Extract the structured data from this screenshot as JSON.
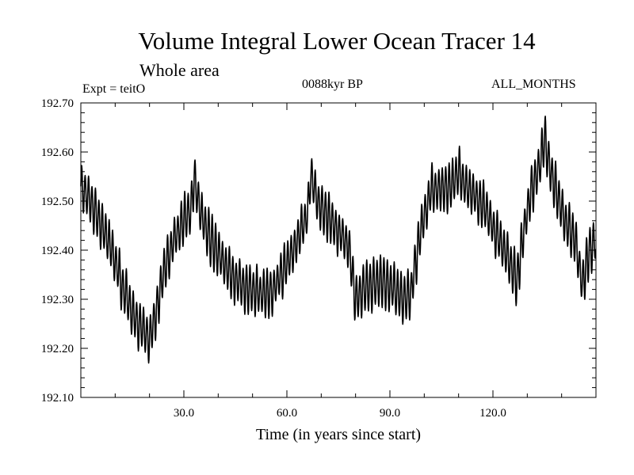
{
  "chart_data": {
    "type": "line",
    "title": "Volume Integral Lower Ocean Tracer 14",
    "subtitle": "Whole area",
    "experiment_label": "Expt = teitO",
    "period_label": "0088kyr BP",
    "months_label": "ALL_MONTHS",
    "xlabel": "Time (in years since start)",
    "ylabel": "",
    "xlim": [
      0,
      150
    ],
    "ylim": [
      192.1,
      192.7
    ],
    "x_ticks": [
      30,
      60,
      90,
      120
    ],
    "x_tick_labels": [
      "30.0",
      "60.0",
      "90.0",
      "120.0"
    ],
    "y_ticks": [
      192.1,
      192.2,
      192.3,
      192.4,
      192.5,
      192.6,
      192.7
    ],
    "y_tick_labels": [
      "192.10",
      "192.20",
      "192.30",
      "192.40",
      "192.50",
      "192.60",
      "192.70"
    ],
    "series": [
      {
        "name": "Volume Integral Lower Ocean Tracer 14",
        "x": [
          0,
          3,
          6,
          9,
          12,
          15,
          18,
          20,
          22,
          24,
          27,
          30,
          32,
          33,
          35,
          38,
          41,
          44,
          47,
          50,
          53,
          56,
          60,
          63,
          66,
          67,
          69,
          72,
          75,
          78,
          80,
          82,
          85,
          88,
          91,
          94,
          96,
          98,
          100,
          102,
          105,
          108,
          110,
          112,
          115,
          118,
          121,
          124,
          127,
          129,
          131,
          134,
          135,
          136,
          138,
          141,
          144,
          146,
          148,
          150
        ],
        "y": [
          192.53,
          192.5,
          192.45,
          192.4,
          192.33,
          192.27,
          192.24,
          192.22,
          192.28,
          192.35,
          192.42,
          192.46,
          192.48,
          192.55,
          192.47,
          192.42,
          192.38,
          192.35,
          192.33,
          192.32,
          192.31,
          192.32,
          192.37,
          192.42,
          192.47,
          192.55,
          192.5,
          192.47,
          192.44,
          192.41,
          192.3,
          192.32,
          192.33,
          192.34,
          192.32,
          192.3,
          192.31,
          192.4,
          192.47,
          192.52,
          192.53,
          192.53,
          192.56,
          192.53,
          192.51,
          192.48,
          192.43,
          192.39,
          192.34,
          192.44,
          192.52,
          192.58,
          192.63,
          192.59,
          192.53,
          192.46,
          192.42,
          192.33,
          192.4,
          192.42
        ],
        "amplitude": 0.045,
        "period": 1.0
      }
    ]
  }
}
